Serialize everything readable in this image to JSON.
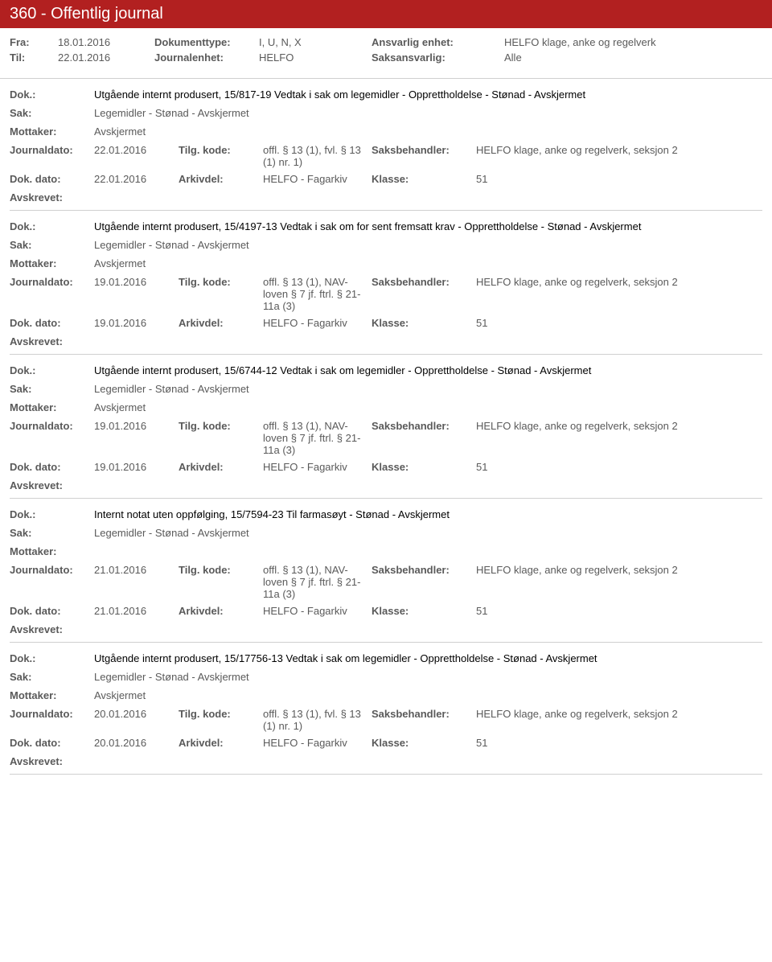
{
  "header": {
    "title": "360 - Offentlig journal"
  },
  "meta": {
    "fra_label": "Fra:",
    "fra_value": "18.01.2016",
    "til_label": "Til:",
    "til_value": "22.01.2016",
    "doktype_label": "Dokumenttype:",
    "doktype_value": "I, U, N, X",
    "journalenhet_label": "Journalenhet:",
    "journalenhet_value": "HELFO",
    "ansvarlig_label": "Ansvarlig enhet:",
    "ansvarlig_value": "HELFO klage, anke og regelverk",
    "saksansvarlig_label": "Saksansvarlig:",
    "saksansvarlig_value": "Alle"
  },
  "labels": {
    "dok": "Dok.:",
    "sak": "Sak:",
    "mottaker": "Mottaker:",
    "journaldato": "Journaldato:",
    "tilgkode": "Tilg. kode:",
    "saksbehandler": "Saksbehandler:",
    "dokdato": "Dok. dato:",
    "arkivdel": "Arkivdel:",
    "klasse": "Klasse:",
    "avskrevet": "Avskrevet:"
  },
  "entries": [
    {
      "dok_title": "Utgående internt produsert, 15/817-19 Vedtak i sak om legemidler - Opprettholdelse - Stønad - Avskjermet",
      "sak": "Legemidler - Stønad - Avskjermet",
      "mottaker": "Avskjermet",
      "journaldato": "22.01.2016",
      "tilgkode": "offl. § 13 (1), fvl. § 13 (1) nr. 1)",
      "saksbehandler": "HELFO klage, anke og regelverk, seksjon 2",
      "dokdato": "22.01.2016",
      "arkivdel": "HELFO - Fagarkiv",
      "klasse": "51"
    },
    {
      "dok_title": "Utgående internt produsert, 15/4197-13 Vedtak i sak om for sent fremsatt krav - Opprettholdelse - Stønad - Avskjermet",
      "sak": "Legemidler - Stønad - Avskjermet",
      "mottaker": "Avskjermet",
      "journaldato": "19.01.2016",
      "tilgkode": "offl. § 13 (1), NAV-loven § 7 jf. ftrl. § 21-11a (3)",
      "saksbehandler": "HELFO klage, anke og regelverk, seksjon 2",
      "dokdato": "19.01.2016",
      "arkivdel": "HELFO - Fagarkiv",
      "klasse": "51"
    },
    {
      "dok_title": "Utgående internt produsert, 15/6744-12 Vedtak i sak om legemidler - Opprettholdelse - Stønad - Avskjermet",
      "sak": "Legemidler - Stønad - Avskjermet",
      "mottaker": "Avskjermet",
      "journaldato": "19.01.2016",
      "tilgkode": "offl. § 13 (1), NAV-loven § 7 jf. ftrl. § 21-11a (3)",
      "saksbehandler": "HELFO klage, anke og regelverk, seksjon 2",
      "dokdato": "19.01.2016",
      "arkivdel": "HELFO - Fagarkiv",
      "klasse": "51"
    },
    {
      "dok_title": "Internt notat uten oppfølging, 15/7594-23 Til farmasøyt - Stønad - Avskjermet",
      "sak": "Legemidler - Stønad - Avskjermet",
      "mottaker": "",
      "journaldato": "21.01.2016",
      "tilgkode": "offl. § 13 (1), NAV-loven § 7 jf. ftrl. § 21-11a (3)",
      "saksbehandler": "HELFO klage, anke og regelverk, seksjon 2",
      "dokdato": "21.01.2016",
      "arkivdel": "HELFO - Fagarkiv",
      "klasse": "51"
    },
    {
      "dok_title": "Utgående internt produsert, 15/17756-13 Vedtak i sak om legemidler - Opprettholdelse - Stønad - Avskjermet",
      "sak": "Legemidler - Stønad - Avskjermet",
      "mottaker": "Avskjermet",
      "journaldato": "20.01.2016",
      "tilgkode": "offl. § 13 (1), fvl. § 13 (1) nr. 1)",
      "saksbehandler": "HELFO klage, anke og regelverk, seksjon 2",
      "dokdato": "20.01.2016",
      "arkivdel": "HELFO - Fagarkiv",
      "klasse": "51"
    }
  ]
}
